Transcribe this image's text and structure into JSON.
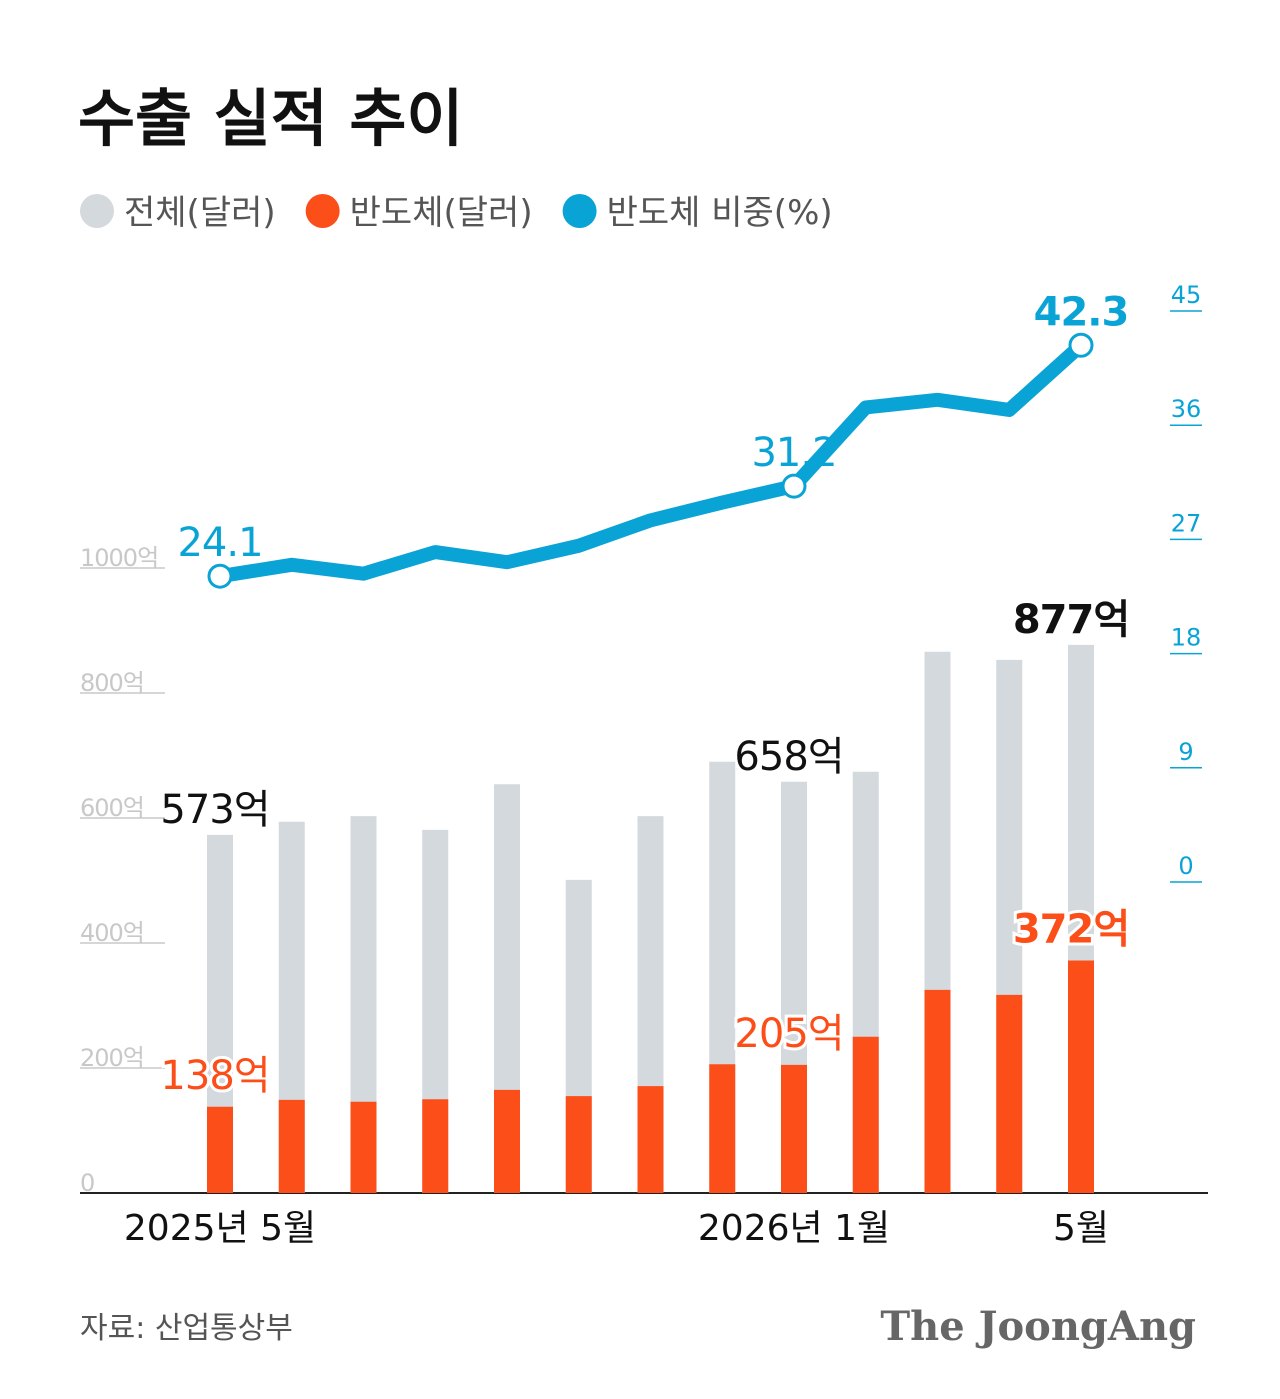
{
  "chart_data": {
    "type": "bar",
    "title": "수출 실적 추이",
    "categories": [
      "2025년 5월",
      null,
      null,
      null,
      null,
      null,
      null,
      null,
      "2026년 1월",
      null,
      null,
      null,
      "5월"
    ],
    "series": [
      {
        "name": "전체(달러)",
        "color": "#d4d9dd",
        "values": [
          573,
          594,
          603,
          581,
          654,
          501,
          603,
          690,
          658,
          674,
          866,
          853,
          877
        ],
        "value_labels": [
          "573억",
          null,
          null,
          null,
          null,
          null,
          null,
          null,
          "658억",
          null,
          null,
          null,
          "877억"
        ]
      },
      {
        "name": "반도체(달러)",
        "color": "#fc4e19",
        "values": [
          138,
          149,
          146,
          150,
          165,
          155,
          171,
          206,
          205,
          250,
          325,
          317,
          372
        ],
        "value_labels": [
          "138억",
          null,
          null,
          null,
          null,
          null,
          null,
          null,
          "205억",
          null,
          null,
          null,
          "372억"
        ]
      },
      {
        "name": "반도체 비중(%)",
        "color": "#0aa3d6",
        "type": "line",
        "axis": "y2",
        "values": [
          24.1,
          25.0,
          24.3,
          26.0,
          25.2,
          26.5,
          28.5,
          29.9,
          31.2,
          37.4,
          38.0,
          37.2,
          42.3
        ],
        "value_labels": [
          "24.1",
          null,
          null,
          null,
          null,
          null,
          null,
          null,
          "31.2",
          null,
          null,
          null,
          "42.3"
        ]
      }
    ],
    "ylim": [
      0,
      1000
    ],
    "yticks": [
      {
        "value": 0,
        "label": "0"
      },
      {
        "value": 200,
        "label": "200억"
      },
      {
        "value": 400,
        "label": "400억"
      },
      {
        "value": 600,
        "label": "600억"
      },
      {
        "value": 800,
        "label": "800억"
      },
      {
        "value": 1000,
        "label": "1000억"
      }
    ],
    "y2lim": [
      0,
      45
    ],
    "y2ticks": [
      0,
      9,
      18,
      27,
      36,
      45
    ],
    "source": "자료: 산업통상부",
    "logo": "The JoongAng"
  }
}
